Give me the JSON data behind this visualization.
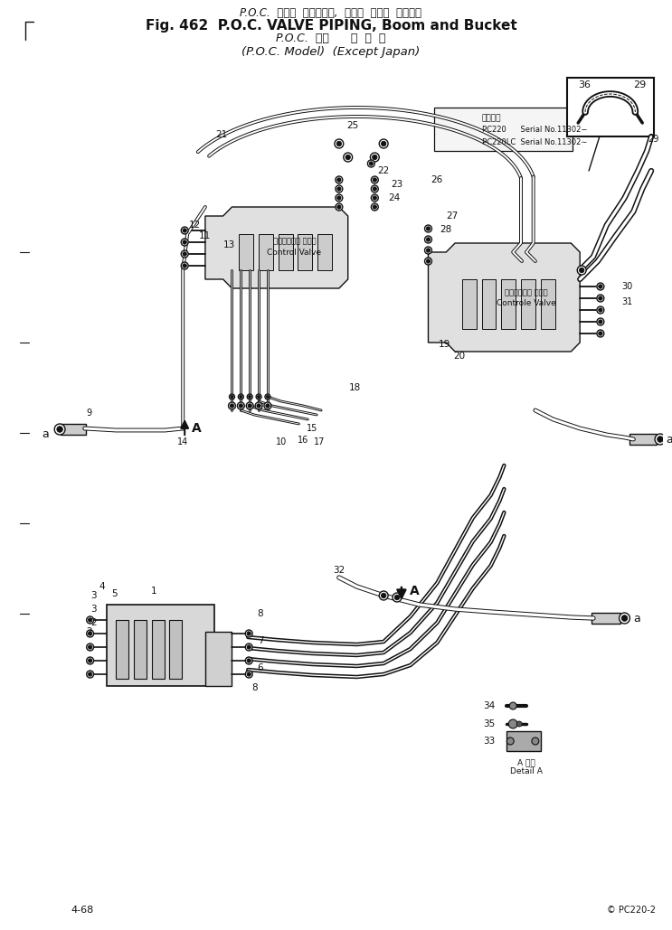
{
  "title_line1": "P.O.C.  バルブ  パイピング,  ブーム  および  バケット",
  "title_line2": "Fig. 462  P.O.C. VALVE PIPING, Boom and Bucket",
  "title_line3": "P.O.C.  仕様      海  外  向",
  "title_line4": "(P.O.C. Model)  (Except Japan)",
  "serial_label": "適用番号",
  "serial1": "PC220      Serial No.11302−",
  "serial2": "PC220LC  Serial No.11302∼",
  "ctrl_valve_jp": "コントロール バルプ",
  "ctrl_valve_en": "Control Valve",
  "ctrl_valve2_jp": "コントロール バルプ",
  "ctrl_valve2_en": "Controle Valve",
  "detail_jp": "A 計画",
  "detail_en": "Detail A",
  "page": "4-68",
  "copy": "© PC220-2",
  "bg": "#ffffff",
  "ink": "#111111",
  "dpi": 100,
  "fw": 7.43,
  "fh": 10.29
}
